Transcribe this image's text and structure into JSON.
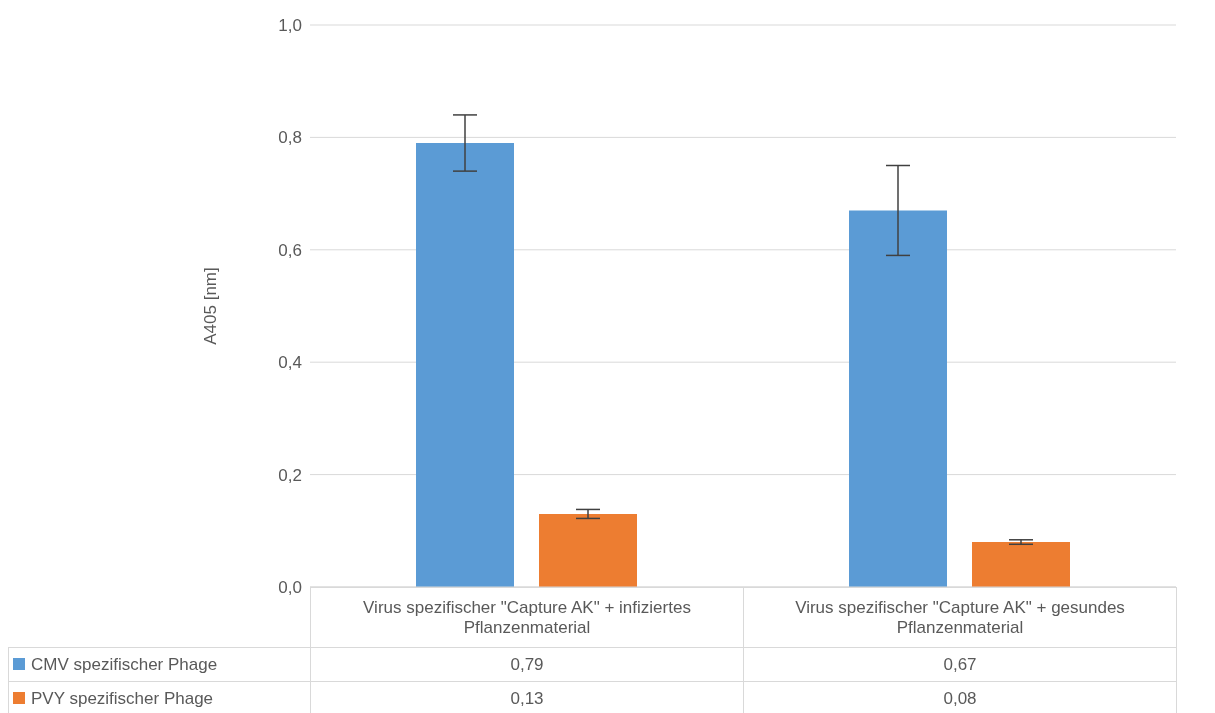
{
  "chart_data": {
    "type": "bar",
    "ylabel": "A405 [nm]",
    "categories": [
      "Virus spezifischer \"Capture AK\" + infiziertes Pflanzenmaterial",
      "Virus spezifischer \"Capture AK\" + gesundes Pflanzenmaterial"
    ],
    "series": [
      {
        "name": "CMV spezifischer Phage",
        "color": "#5b9bd5",
        "values": [
          0.79,
          0.67
        ],
        "errors": [
          0.05,
          0.08
        ],
        "value_labels": [
          "0,79",
          "0,67"
        ]
      },
      {
        "name": "PVY spezifischer Phage",
        "color": "#ed7d31",
        "values": [
          0.13,
          0.08
        ],
        "errors": [
          0.008,
          0.004
        ],
        "value_labels": [
          "0,13",
          "0,08"
        ]
      }
    ],
    "ylim": [
      0,
      1
    ],
    "yticks": [
      {
        "value": 0,
        "label": "0,0"
      },
      {
        "value": 0.2,
        "label": "0,2"
      },
      {
        "value": 0.4,
        "label": "0,4"
      },
      {
        "value": 0.6,
        "label": "0,6"
      },
      {
        "value": 0.8,
        "label": "0,8"
      },
      {
        "value": 1,
        "label": "1,0"
      }
    ],
    "grid": "y",
    "legend": "bottom"
  }
}
